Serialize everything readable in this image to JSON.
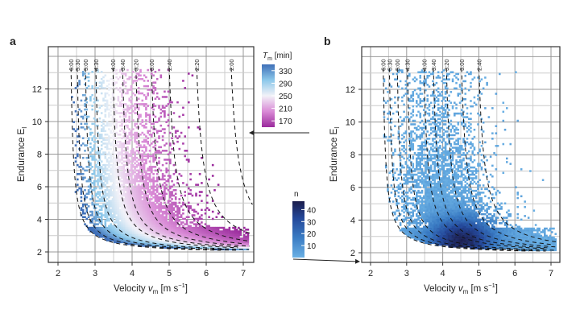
{
  "chart_data": [
    {
      "panel": "a",
      "type": "heatmap",
      "xlabel": "Velocity v_m [m s⁻¹]",
      "xlabel_main": "Velocity ",
      "xlabel_var": "v",
      "xlabel_sub": "m",
      "xlabel_unit": " [m s",
      "xlabel_exp": "−1",
      "xlabel_close": "]",
      "ylabel": "Endurance E_l",
      "ylabel_main": "Endurance E",
      "ylabel_sub": "l",
      "xlim": [
        1.75,
        7.28
      ],
      "ylim": [
        1.4,
        14.6
      ],
      "xticks": [
        "2",
        "3",
        "4",
        "5",
        "6",
        "7"
      ],
      "yticks": [
        "2",
        "4",
        "6",
        "8",
        "10",
        "12"
      ],
      "grid": true,
      "contour_labels": [
        "6:00",
        "5:30",
        "5:00",
        "4:30",
        "4:00",
        "3:40",
        "3:20",
        "3:00",
        "2:40",
        "2:20",
        "2:00"
      ],
      "contour_top_velocity": [
        2.35,
        2.52,
        2.74,
        3.02,
        3.48,
        3.74,
        4.1,
        4.52,
        5.0,
        5.74,
        6.67
      ],
      "colorbar": {
        "title_var": "T",
        "title_sub": "m",
        "title_unit": " [min]",
        "ticks": [
          "330",
          "290",
          "250",
          "210",
          "170"
        ],
        "range": [
          150,
          350
        ],
        "colors": [
          "#9a2a9c",
          "#d98ad6",
          "#f2f2f8",
          "#8cc8ea",
          "#3f6fb8"
        ]
      }
    },
    {
      "panel": "b",
      "type": "heatmap",
      "xlim": [
        1.75,
        7.28
      ],
      "ylim": [
        1.4,
        14.6
      ],
      "xticks": [
        "2",
        "3",
        "4",
        "5",
        "6",
        "7"
      ],
      "yticks": [
        "2",
        "4",
        "6",
        "8",
        "10",
        "12"
      ],
      "grid": true,
      "contour_labels": [
        "6:00",
        "5:30",
        "5:00",
        "4:30",
        "4:00",
        "3:40",
        "3:20",
        "3:00",
        "2:40"
      ],
      "contour_top_velocity": [
        2.35,
        2.52,
        2.74,
        3.02,
        3.48,
        3.74,
        4.1,
        4.52,
        5.0
      ],
      "colorbar": {
        "title": "n",
        "ticks": [
          "40",
          "30",
          "20",
          "10"
        ],
        "range": [
          0,
          47
        ],
        "colors": [
          "#6ab0e4",
          "#3a7cc4",
          "#24489a",
          "#1c1d4c"
        ]
      }
    }
  ]
}
